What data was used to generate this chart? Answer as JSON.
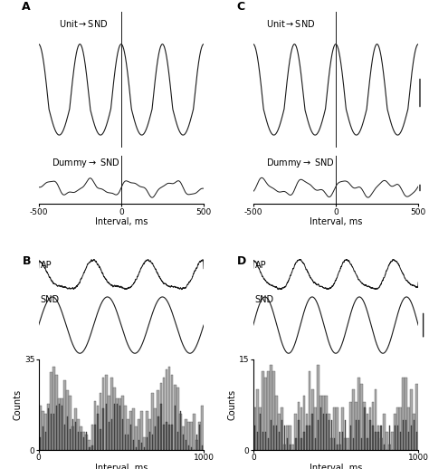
{
  "panel_label_fontsize": 9,
  "axis_label_fontsize": 7,
  "tick_label_fontsize": 6.5,
  "annotation_fontsize": 7,
  "line_color": "#1a1a1a",
  "bar_color_light": "#aaaaaa",
  "bar_color_dark": "#555555",
  "xlabel_corr": "Interval, ms",
  "xlabel_time": "Interval, ms",
  "ylabel_counts_B": "Counts",
  "ylabel_counts_D": "Counts",
  "corr_xlim": [
    -500,
    500
  ],
  "corr_xticks": [
    -500,
    0,
    500
  ],
  "hist_xlim": [
    0,
    1000
  ],
  "hist_ylim_B": [
    0,
    35
  ],
  "hist_yticks_B": [
    0,
    35
  ],
  "hist_ylim_D": [
    0,
    15
  ],
  "hist_yticks_D": [
    0,
    15
  ],
  "unit_freq_A": 4.0,
  "unit_freq_C": 4.0,
  "dummy_amp": 0.12,
  "ap_freq_B": 3.0,
  "ap_freq_D": 3.5,
  "snd_freq_B": 3.0,
  "snd_freq_D": 3.5
}
